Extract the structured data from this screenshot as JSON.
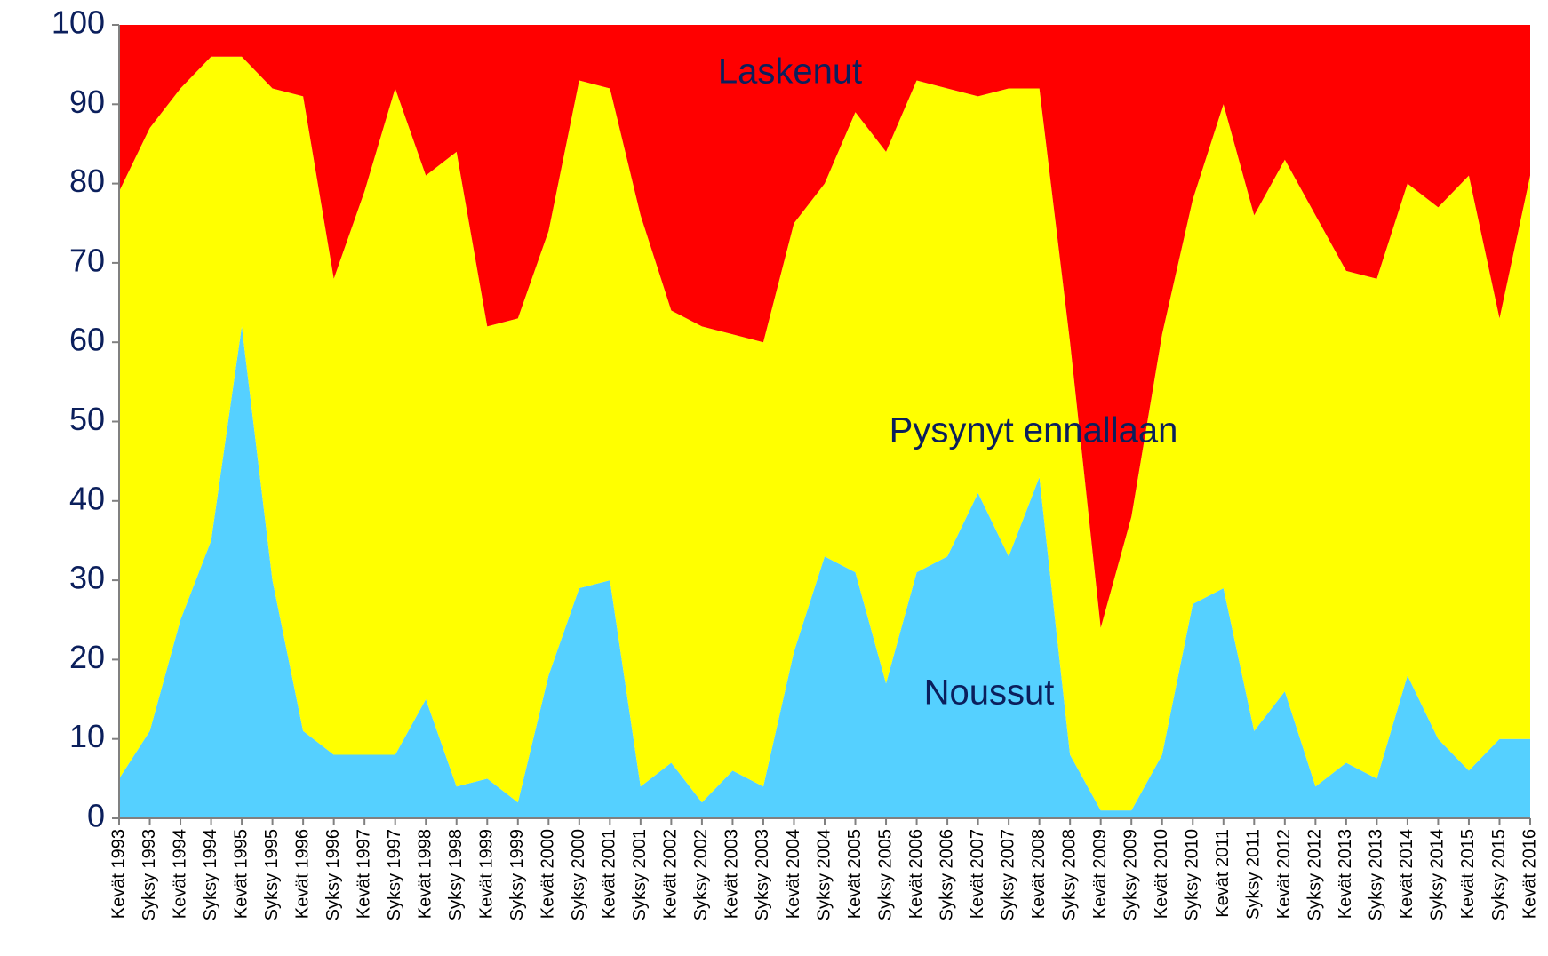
{
  "chart_data": {
    "type": "stacked_area",
    "categories": [
      "Kevät 1993",
      "Syksy 1993",
      "Kevät 1994",
      "Syksy 1994",
      "Kevät 1995",
      "Syksy 1995",
      "Kevät 1996",
      "Syksy 1996",
      "Kevät 1997",
      "Syksy 1997",
      "Kevät 1998",
      "Syksy 1998",
      "Kevät 1999",
      "Syksy 1999",
      "Kevät 2000",
      "Syksy 2000",
      "Kevät 2001",
      "Syksy 2001",
      "Kevät 2002",
      "Syksy 2002",
      "Kevät 2003",
      "Syksy 2003",
      "Kevät 2004",
      "Syksy 2004",
      "Kevät 2005",
      "Syksy 2005",
      "Kevät 2006",
      "Syksy 2006",
      "Kevät 2007",
      "Syksy 2007",
      "Kevät 2008",
      "Syksy 2008",
      "Kevät 2009",
      "Syksy 2009",
      "Kevät 2010",
      "Syksy 2010",
      "Kevät 2011",
      "Syksy 2011",
      "Kevät 2012",
      "Syksy 2012",
      "Kevät 2013",
      "Syksy 2013",
      "Kevät 2014",
      "Syksy 2014",
      "Kevät 2015",
      "Syksy 2015",
      "Kevät 2016"
    ],
    "series": [
      {
        "name": "Noussut",
        "color": "#55d0ff",
        "values": [
          5,
          11,
          25,
          35,
          62,
          30,
          11,
          8,
          8,
          8,
          15,
          4,
          5,
          2,
          18,
          29,
          30,
          4,
          7,
          2,
          6,
          4,
          21,
          33,
          31,
          17,
          31,
          33,
          41,
          33,
          43,
          8,
          1,
          1,
          8,
          27,
          29,
          11,
          16,
          4,
          7,
          5,
          18,
          10,
          6,
          10,
          10
        ]
      },
      {
        "name": "Pysynyt ennallaan",
        "color": "#ffff00",
        "values": [
          74,
          76,
          67,
          61,
          34,
          62,
          80,
          60,
          71,
          84,
          66,
          80,
          57,
          61,
          56,
          64,
          62,
          72,
          57,
          60,
          55,
          56,
          54,
          47,
          58,
          67,
          62,
          59,
          50,
          59,
          49,
          52,
          23,
          37,
          53,
          51,
          61,
          65,
          67,
          72,
          62,
          63,
          62,
          67,
          75,
          53,
          71
        ]
      },
      {
        "name": "Laskenut",
        "color": "#ff0000",
        "values": [
          21,
          13,
          8,
          4,
          4,
          8,
          9,
          32,
          21,
          8,
          19,
          16,
          38,
          37,
          26,
          7,
          8,
          24,
          36,
          38,
          39,
          40,
          25,
          20,
          11,
          16,
          7,
          8,
          9,
          8,
          8,
          40,
          76,
          62,
          39,
          22,
          10,
          24,
          17,
          24,
          31,
          32,
          20,
          23,
          19,
          37,
          19
        ]
      }
    ],
    "ylim": [
      0,
      100
    ],
    "yticks": [
      0,
      10,
      20,
      30,
      40,
      50,
      60,
      70,
      80,
      90,
      100
    ],
    "grid": false
  }
}
